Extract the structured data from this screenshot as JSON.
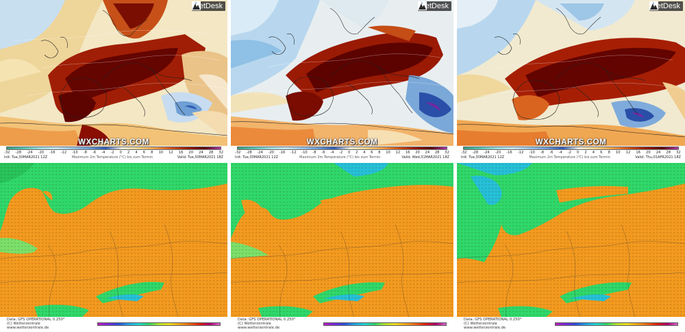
{
  "brand": {
    "logo_text": "MetDesk",
    "watermark": "WXCHARTS.COM",
    "footer_lines": [
      "Data: GFS OPERATIONAL 0.250°",
      "(C) Wetterzentrale",
      "www.wetterzentrale.de"
    ]
  },
  "colorbar_ticks": [
    "-32",
    "-28",
    "-24",
    "-20",
    "-16",
    "-12",
    "-10",
    "-8",
    "-6",
    "-4",
    "-2",
    "0",
    "2",
    "4",
    "6",
    "8",
    "10",
    "12",
    "16",
    "20",
    "24",
    "28",
    "32"
  ],
  "top_maps": [
    {
      "init": "Init: Tue,30MAR2021 12Z",
      "title": "Maximum 2m Temperature (°C) bis zum Termin",
      "valid": "Valid: Tue,30MAR2021 18Z"
    },
    {
      "init": "Init: Tue,30MAR2021 12Z",
      "title": "Maximum 2m Temperature (°C) bis zum Termin",
      "valid": "Valid: Wed,31MAR2021 18Z"
    },
    {
      "init": "Init: Tue,30MAR2021 12Z",
      "title": "Maximum 2m Temperature (°C) bis zum Termin",
      "valid": "Valid: Thu,01APR2021 18Z"
    }
  ],
  "colors": {
    "extreme_hot": "#5a0000",
    "very_hot": "#9a1a04",
    "hot": "#d0531a",
    "warm": "#f0a04a",
    "mild": "#f7d68a",
    "neutral": "#f1edd0",
    "cool": "#c8dff0",
    "cold": "#7fb0dc",
    "very_cold": "#2e5bb4",
    "grid_orange": "#f39a1f",
    "grid_green": "#2fd86a"
  }
}
